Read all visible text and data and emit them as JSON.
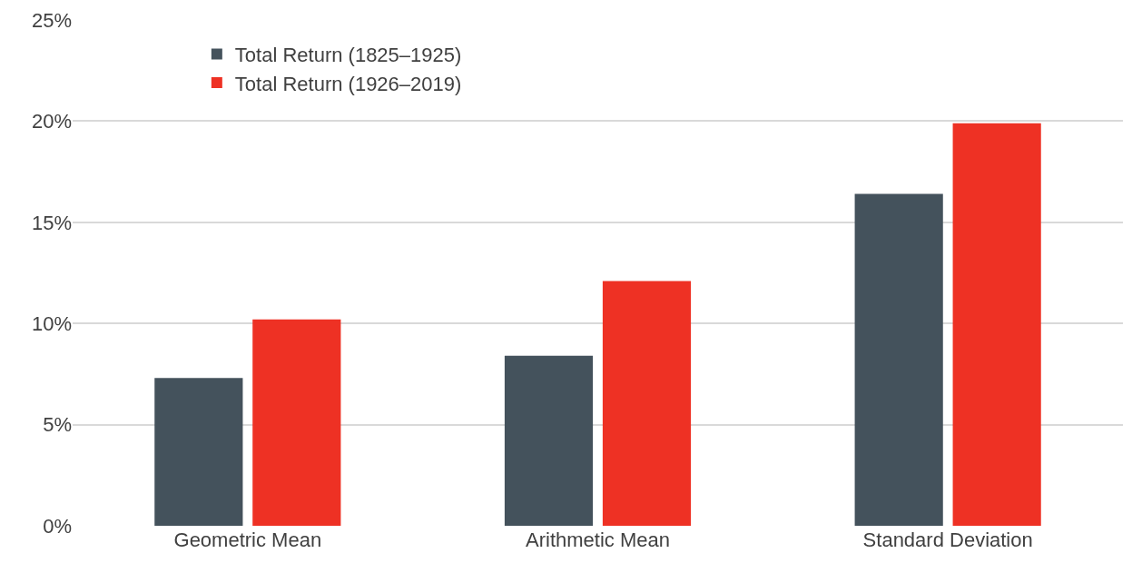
{
  "chart_data": {
    "type": "bar",
    "categories": [
      "Geometric Mean",
      "Arithmetic Mean",
      "Standard Deviation"
    ],
    "series": [
      {
        "name": "Total Return (1825–1925)",
        "color": "#44525c",
        "values": [
          7.3,
          8.4,
          16.4
        ]
      },
      {
        "name": "Total Return (1926–2019)",
        "color": "#ee3124",
        "values": [
          10.2,
          12.1,
          19.9
        ]
      }
    ],
    "ylim": [
      0,
      25
    ],
    "yticks": [
      {
        "value": 0,
        "label": "0%"
      },
      {
        "value": 5,
        "label": "5%"
      },
      {
        "value": 10,
        "label": "10%"
      },
      {
        "value": 15,
        "label": "15%"
      },
      {
        "value": 20,
        "label": "20%"
      },
      {
        "value": 25,
        "label": "25%"
      }
    ],
    "grid": "y",
    "legend": "top left"
  }
}
